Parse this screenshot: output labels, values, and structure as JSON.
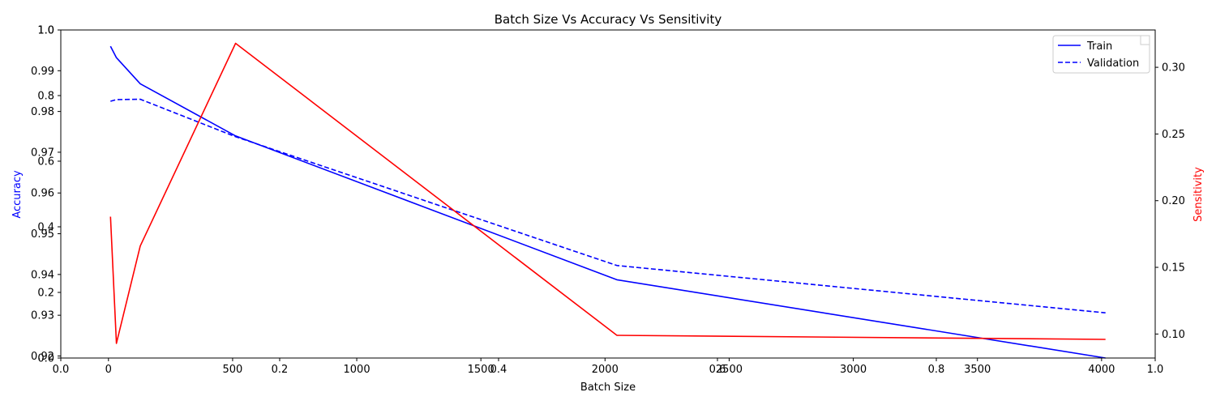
{
  "chart_data": {
    "type": "line",
    "title": "Batch Size Vs Accuracy Vs Sensitivity",
    "xlabel": "Batch Size",
    "ylabel_left": "Accuracy",
    "ylabel_right": "Sensitivity",
    "x": [
      8,
      32,
      128,
      512,
      2048,
      4016
    ],
    "xlim": [
      -192,
      4216
    ],
    "xticks": [
      "0",
      "500",
      "1000",
      "1500",
      "2000",
      "2500",
      "3000",
      "3500",
      "4000"
    ],
    "ylim_left": [
      0.9195,
      1.0
    ],
    "yticks_left": [
      "0.92",
      "0.93",
      "0.94",
      "0.95",
      "0.96",
      "0.97",
      "0.98",
      "0.99",
      "1.0"
    ],
    "ylim_right": [
      0.082,
      0.328
    ],
    "yticks_right": [
      "0.10",
      "0.15",
      "0.20",
      "0.25",
      "0.30"
    ],
    "base_axes_ticks": {
      "x": [
        "0.0",
        "0.2",
        "0.4",
        "0.6",
        "0.8",
        "1.0"
      ],
      "y": [
        "0.0",
        "0.2",
        "0.4",
        "0.6",
        "0.8",
        "1.0"
      ]
    },
    "series": [
      {
        "name": "Train",
        "axis": "left",
        "color": "#0000ff",
        "style": "solid",
        "values": [
          0.996,
          0.9932,
          0.9868,
          0.974,
          0.9387,
          0.9195
        ]
      },
      {
        "name": "Validation",
        "axis": "left",
        "color": "#0000ff",
        "style": "dashed",
        "values": [
          0.9825,
          0.9829,
          0.983,
          0.9738,
          0.9422,
          0.9306
        ]
      },
      {
        "name": "",
        "axis": "right",
        "color": "#ff0000",
        "style": "solid",
        "values": [
          0.188,
          0.093,
          0.166,
          0.318,
          0.099,
          0.096
        ]
      }
    ],
    "legend_position": "upper-right",
    "grid": false
  }
}
